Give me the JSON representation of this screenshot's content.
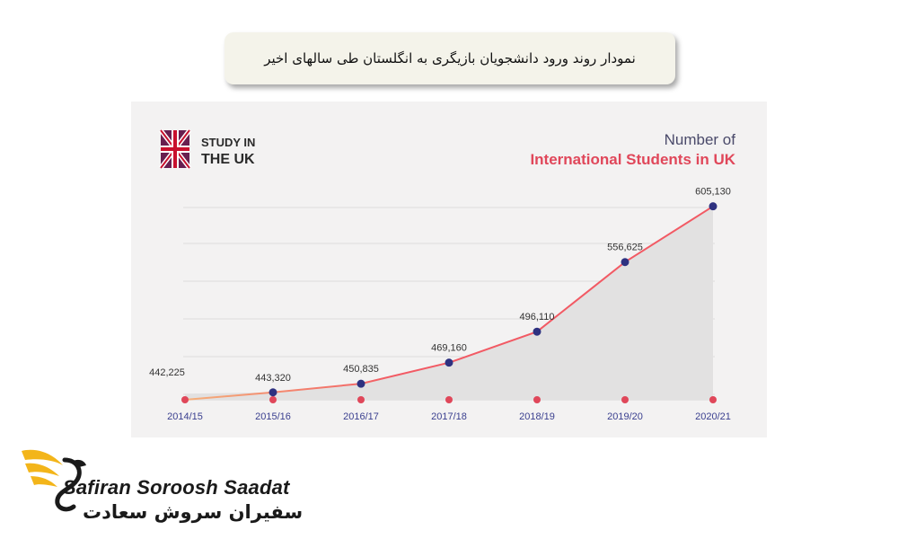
{
  "page": {
    "title_fa": "نمودار روند ورود دانشجویان بازیگری به انگلستان طی سالهای اخیر"
  },
  "brand": {
    "badge_line1": "STUDY IN",
    "badge_line2": "THE UK",
    "logo_en": "Safiran Soroosh Saadat",
    "logo_fa": "سفیران سروش سعادت"
  },
  "chart_data": {
    "type": "line",
    "title_line1": "Number of",
    "title_line2": "International Students in UK",
    "categories": [
      "2014/15",
      "2015/16",
      "2016/17",
      "2017/18",
      "2018/19",
      "2019/20",
      "2020/21"
    ],
    "values": [
      442225,
      443320,
      450835,
      469160,
      496110,
      556625,
      605130
    ],
    "value_labels": [
      "442,225",
      "443,320",
      "450,835",
      "469,160",
      "496,110",
      "556,625",
      "605,130"
    ],
    "grid": true,
    "legend": "none"
  },
  "colors": {
    "title_dark": "#4a4a6a",
    "title_red": "#e0475a",
    "line": "#f25a64",
    "line_start": "#f5b07a",
    "marker": "#2e3180",
    "axis_dot": "#e0475a",
    "tick_label": "#3a3f8f",
    "logo_gold": "#f3b51a"
  }
}
